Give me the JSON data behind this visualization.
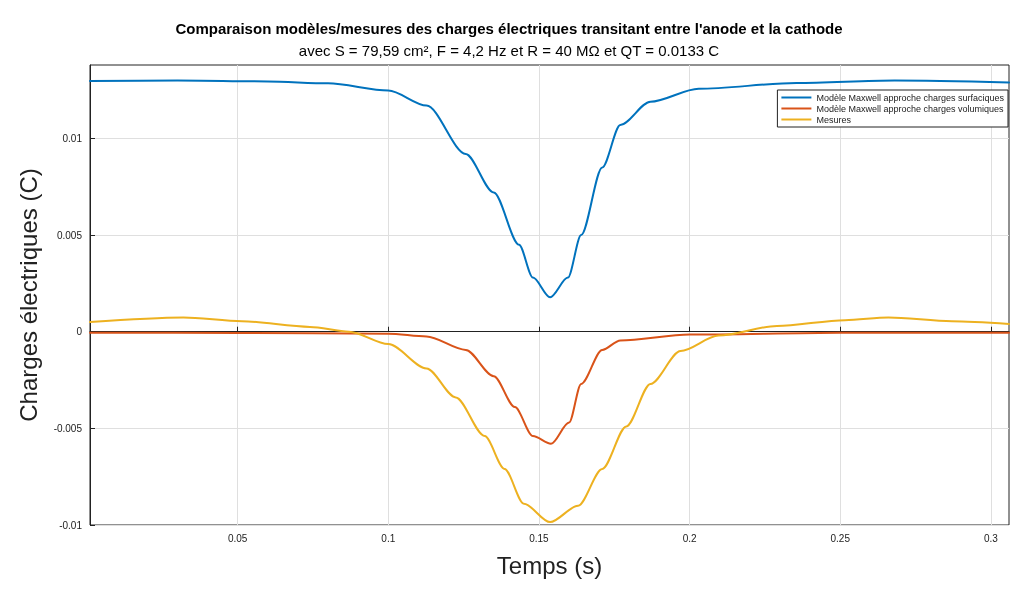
{
  "chart_data": {
    "type": "line",
    "title": "Comparaison modèles/mesures des charges électriques transitant entre l'anode et la cathode",
    "subtitle": "avec S = 79,59 cm², F = 4,2 Hz et R = 40 MΩ et QT = 0.0133 C",
    "xlabel": "Temps (s)",
    "ylabel": "Charges électriques (C)",
    "xlim": [
      0.001,
      0.306
    ],
    "ylim": [
      -0.01,
      0.0138
    ],
    "xticks": [
      0.05,
      0.1,
      0.15,
      0.2,
      0.25,
      0.3
    ],
    "yticks": [
      -0.01,
      -0.005,
      0,
      0.005,
      0.01
    ],
    "grid": true,
    "legend": "top right",
    "marker": "none",
    "line_style": "solid",
    "series": [
      {
        "name": "Modèle Maxwell approche charges surfaciques",
        "color": "#0072bd",
        "x": [
          0.001,
          0.03,
          0.06,
          0.08,
          0.1,
          0.1127,
          0.1257,
          0.135,
          0.1434,
          0.148,
          0.1537,
          0.1596,
          0.164,
          0.171,
          0.177,
          0.187,
          0.203,
          0.2355,
          0.268,
          0.306
        ],
        "values": [
          0.01297,
          0.013,
          0.01295,
          0.01285,
          0.01248,
          0.0117,
          0.0092,
          0.0072,
          0.0045,
          0.0028,
          0.00178,
          0.0028,
          0.005,
          0.0085,
          0.0107,
          0.0119,
          0.01257,
          0.01287,
          0.013,
          0.0129
        ]
      },
      {
        "name": "Modèle Maxwell approche charges volumiques",
        "color": "#d95319",
        "x": [
          0.001,
          0.05,
          0.1,
          0.1127,
          0.1257,
          0.135,
          0.142,
          0.148,
          0.154,
          0.16,
          0.164,
          0.171,
          0.177,
          0.2,
          0.25,
          0.306
        ],
        "values": [
          -5e-05,
          -6e-05,
          -0.0001,
          -0.00025,
          -0.00094,
          -0.0023,
          -0.0039,
          -0.0054,
          -0.0058,
          -0.0047,
          -0.0027,
          -0.00094,
          -0.00045,
          -0.00015,
          -5e-05,
          -5e-05
        ]
      },
      {
        "name": "Mesures",
        "color": "#edb120",
        "x": [
          0.001,
          0.032,
          0.0514,
          0.074,
          0.087,
          0.1,
          0.1127,
          0.1224,
          0.132,
          0.1386,
          0.145,
          0.1537,
          0.163,
          0.171,
          0.179,
          0.187,
          0.197,
          0.2096,
          0.229,
          0.2516,
          0.266,
          0.287,
          0.306
        ],
        "values": [
          0.0005,
          0.00074,
          0.00054,
          0.00025,
          0,
          -0.00064,
          -0.0019,
          -0.0034,
          -0.0054,
          -0.0071,
          -0.0089,
          -0.00985,
          -0.009,
          -0.0071,
          -0.0049,
          -0.0027,
          -0.001,
          -0.0002,
          0.0003,
          0.0006,
          0.00074,
          0.00054,
          0.0004
        ]
      }
    ]
  }
}
